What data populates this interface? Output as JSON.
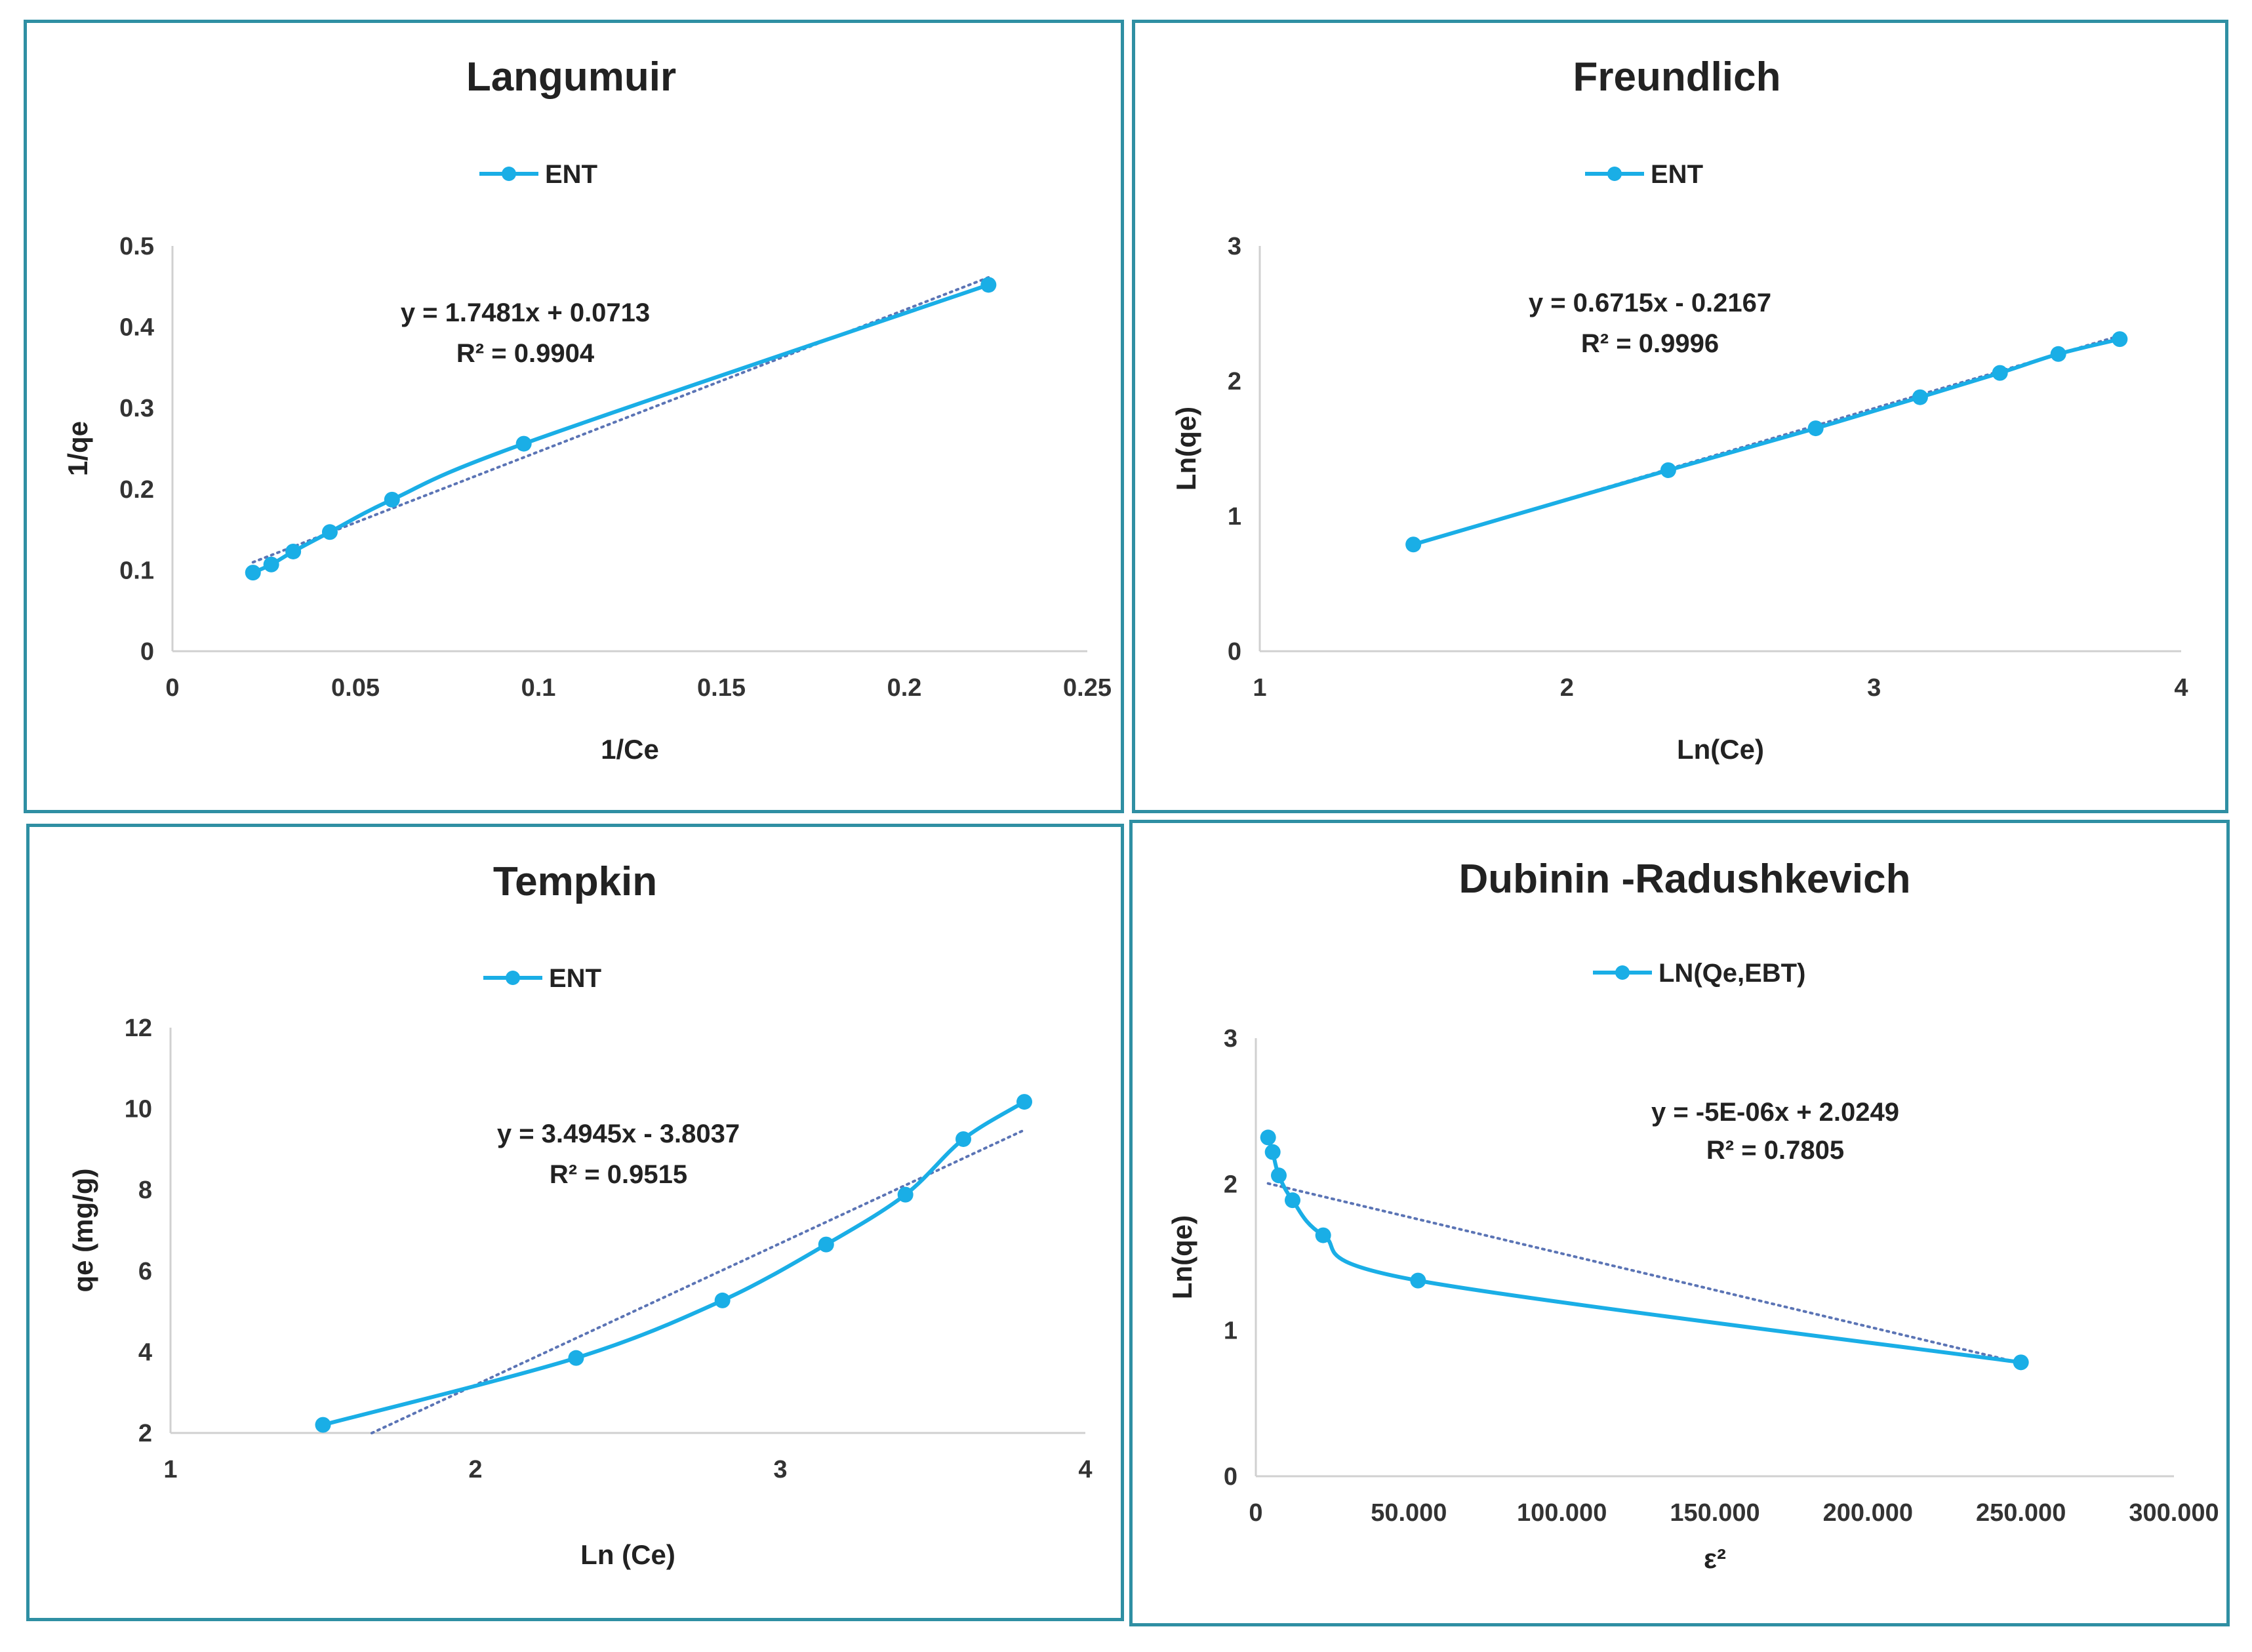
{
  "colors": {
    "series": "#1aaee6",
    "trend": "#5b74b5",
    "border": "#2f8fa3",
    "axis": "#d0d0d0"
  },
  "chart_data": [
    {
      "type": "line",
      "title": "Langumuir",
      "legend": "ENT",
      "xlabel": "1/Ce",
      "ylabel": "1/qe",
      "xlim": [
        0,
        0.25
      ],
      "ylim": [
        0,
        0.5
      ],
      "xticks": [
        0,
        0.05,
        0.1,
        0.15,
        0.2,
        0.25
      ],
      "yticks": [
        0,
        0.1,
        0.2,
        0.3,
        0.4,
        0.5
      ],
      "xtick_labels": [
        "0",
        "0.05",
        "0.1",
        "0.15",
        "0.2",
        "0.25"
      ],
      "ytick_labels": [
        "0",
        "0.1",
        "0.2",
        "0.3",
        "0.4",
        "0.5"
      ],
      "x": [
        0.022,
        0.027,
        0.033,
        0.043,
        0.06,
        0.096,
        0.223
      ],
      "y": [
        0.097,
        0.107,
        0.123,
        0.147,
        0.187,
        0.256,
        0.452
      ],
      "trendline": {
        "slope": 1.7481,
        "intercept": 0.0713,
        "x_range": [
          0.022,
          0.223
        ]
      },
      "equation": "y = 1.7481x + 0.0713",
      "r2": "R² = 0.9904"
    },
    {
      "type": "line",
      "title": "Freundlich",
      "legend": "ENT",
      "xlabel": "Ln(Ce)",
      "ylabel": "Ln(qe)",
      "xlim": [
        1,
        4
      ],
      "ylim": [
        0,
        3
      ],
      "xticks": [
        1,
        2,
        3,
        4
      ],
      "yticks": [
        0,
        1,
        2,
        3
      ],
      "xtick_labels": [
        "1",
        "2",
        "3",
        "4"
      ],
      "ytick_labels": [
        "0",
        "1",
        "2",
        "3"
      ],
      "x": [
        1.5,
        2.33,
        2.81,
        3.15,
        3.41,
        3.6,
        3.8
      ],
      "y": [
        0.79,
        1.34,
        1.65,
        1.88,
        2.06,
        2.2,
        2.31
      ],
      "trendline": {
        "slope": 0.6715,
        "intercept": -0.2167,
        "x_range": [
          1.5,
          3.8
        ]
      },
      "equation": "y = 0.6715x - 0.2167",
      "r2": "R² = 0.9996"
    },
    {
      "type": "line",
      "title": "Tempkin",
      "legend": "ENT",
      "xlabel": "Ln (Ce)",
      "ylabel": "qe (mg/g)",
      "xlim": [
        1,
        4
      ],
      "ylim": [
        2,
        12
      ],
      "xticks": [
        1,
        2,
        3,
        4
      ],
      "yticks": [
        2,
        4,
        6,
        8,
        10,
        12
      ],
      "xtick_labels": [
        "1",
        "2",
        "3",
        "4"
      ],
      "ytick_labels": [
        "2",
        "4",
        "6",
        "8",
        "10",
        "12"
      ],
      "x": [
        1.5,
        2.33,
        2.81,
        3.15,
        3.41,
        3.6,
        3.8
      ],
      "y": [
        2.2,
        3.85,
        5.27,
        6.65,
        7.88,
        9.25,
        10.17
      ],
      "trendline": {
        "slope": 3.4945,
        "intercept": -3.8037,
        "x_range": [
          1.66,
          3.8
        ]
      },
      "equation": "y = 3.4945x - 3.8037",
      "r2": "R² = 0.9515"
    },
    {
      "type": "line",
      "title": "Dubinin -Radushkevich",
      "legend": "LN(Qe,EBT)",
      "xlabel": "ε²",
      "ylabel": "Ln(qe)",
      "xlim": [
        0,
        300000
      ],
      "ylim": [
        0,
        3
      ],
      "xticks": [
        0,
        50000,
        100000,
        150000,
        200000,
        250000,
        300000
      ],
      "yticks": [
        0,
        1,
        2,
        3
      ],
      "xtick_labels": [
        "0",
        "50.000",
        "100.000",
        "150.000",
        "200.000",
        "250.000",
        "300.000"
      ],
      "ytick_labels": [
        "0",
        "1",
        "2",
        "3"
      ],
      "x": [
        4000,
        5500,
        7500,
        12000,
        22000,
        53000,
        250000
      ],
      "y": [
        2.32,
        2.22,
        2.06,
        1.89,
        1.65,
        1.34,
        0.78
      ],
      "trendline": {
        "slope": -5e-06,
        "intercept": 2.0249,
        "x_range": [
          4000,
          250000
        ]
      },
      "equation": "y = -5E-06x + 2.0249",
      "r2": "R² = 0.7805"
    }
  ]
}
